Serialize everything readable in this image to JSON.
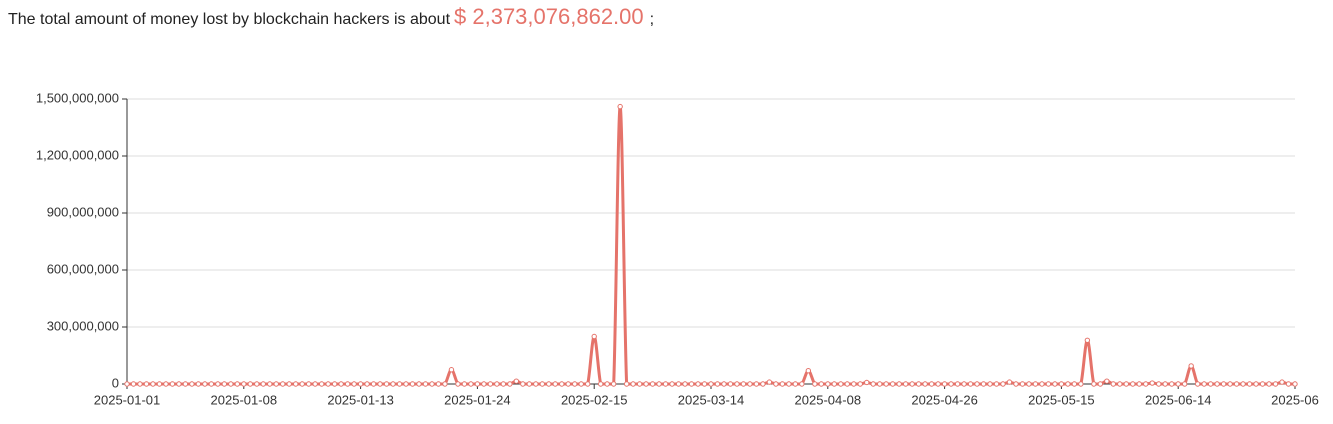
{
  "header": {
    "prefix": "The total amount of money lost by blockchain hackers is about",
    "amount": "$ 2,373,076,862.00",
    "suffix": ";"
  },
  "chart_data": {
    "type": "line",
    "categories": [
      "2025-01-01",
      null,
      null,
      null,
      null,
      null,
      null,
      null,
      null,
      null,
      null,
      null,
      null,
      null,
      null,
      null,
      null,
      null,
      "2025-01-08",
      null,
      null,
      null,
      null,
      null,
      null,
      null,
      null,
      null,
      null,
      null,
      null,
      null,
      null,
      null,
      null,
      null,
      "2025-01-13",
      null,
      null,
      null,
      null,
      null,
      null,
      null,
      null,
      null,
      null,
      null,
      null,
      null,
      null,
      null,
      null,
      null,
      "2025-01-24",
      null,
      null,
      null,
      null,
      null,
      null,
      null,
      null,
      null,
      null,
      null,
      null,
      null,
      null,
      null,
      null,
      null,
      "2025-02-15",
      null,
      null,
      null,
      null,
      null,
      null,
      null,
      null,
      null,
      null,
      null,
      null,
      null,
      null,
      null,
      null,
      null,
      "2025-03-14",
      null,
      null,
      null,
      null,
      null,
      null,
      null,
      null,
      null,
      null,
      null,
      null,
      null,
      null,
      null,
      null,
      null,
      "2025-04-08",
      null,
      null,
      null,
      null,
      null,
      null,
      null,
      null,
      null,
      null,
      null,
      null,
      null,
      null,
      null,
      null,
      null,
      "2025-04-26",
      null,
      null,
      null,
      null,
      null,
      null,
      null,
      null,
      null,
      null,
      null,
      null,
      null,
      null,
      null,
      null,
      null,
      "2025-05-15",
      null,
      null,
      null,
      null,
      null,
      null,
      null,
      null,
      null,
      null,
      null,
      null,
      null,
      null,
      null,
      null,
      null,
      "2025-06-14",
      null,
      null,
      null,
      null,
      null,
      null,
      null,
      null,
      null,
      null,
      null,
      null,
      null,
      null,
      null,
      null,
      null,
      "2025-06"
    ],
    "series": [
      {
        "color": "#e5736a",
        "values": [
          0,
          0,
          0,
          0,
          0,
          0,
          0,
          0,
          0,
          0,
          0,
          0,
          0,
          0,
          0,
          0,
          0,
          0,
          0,
          0,
          0,
          0,
          0,
          0,
          0,
          0,
          0,
          0,
          0,
          0,
          0,
          0,
          0,
          0,
          0,
          0,
          0,
          0,
          0,
          0,
          0,
          0,
          0,
          0,
          0,
          0,
          0,
          0,
          0,
          0,
          75000000,
          0,
          0,
          0,
          0,
          0,
          0,
          0,
          0,
          0,
          15000000,
          0,
          0,
          0,
          0,
          0,
          0,
          0,
          0,
          0,
          0,
          0,
          250000000,
          0,
          0,
          0,
          1460000000,
          0,
          0,
          0,
          0,
          0,
          0,
          0,
          0,
          0,
          0,
          0,
          0,
          0,
          0,
          0,
          0,
          0,
          0,
          0,
          0,
          0,
          0,
          10000000,
          0,
          0,
          0,
          0,
          0,
          70000000,
          0,
          0,
          0,
          0,
          0,
          0,
          0,
          0,
          8000000,
          0,
          0,
          0,
          0,
          0,
          0,
          0,
          0,
          0,
          0,
          0,
          0,
          0,
          0,
          0,
          0,
          0,
          0,
          0,
          0,
          0,
          10000000,
          0,
          0,
          0,
          0,
          0,
          0,
          0,
          0,
          0,
          0,
          0,
          230000000,
          0,
          0,
          15000000,
          0,
          0,
          0,
          0,
          0,
          0,
          5000000,
          0,
          0,
          0,
          0,
          0,
          95000000,
          0,
          0,
          0,
          0,
          0,
          0,
          0,
          0,
          0,
          0,
          0,
          0,
          0,
          10000000,
          0,
          0
        ]
      }
    ],
    "ylim": [
      0,
      1500000000
    ],
    "yticks": [
      0,
      {
        "value": 300000000,
        "label": "300,000,000"
      },
      {
        "value": 600000000,
        "label": "600,000,000"
      },
      {
        "value": 900000000,
        "label": "900,000,000"
      },
      {
        "value": 1200000000,
        "label": "1,200,000,000"
      },
      {
        "value": 1500000000,
        "label": "1,500,000,000"
      }
    ],
    "grid": true
  }
}
